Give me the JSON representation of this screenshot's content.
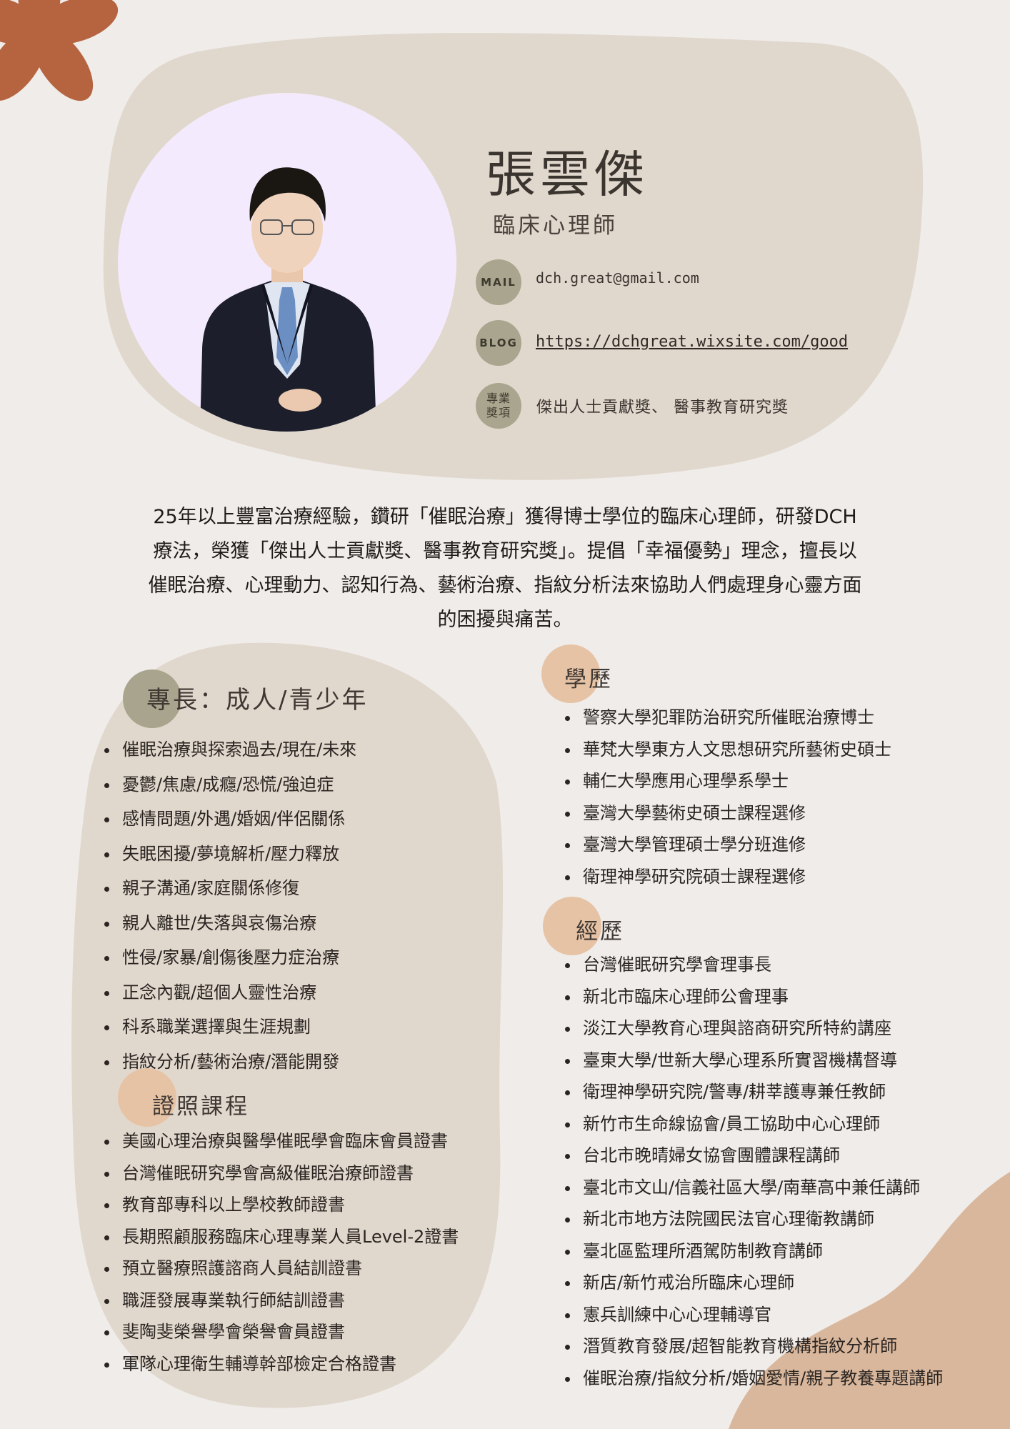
{
  "profile": {
    "name": "張雲傑",
    "title": "臨床心理師",
    "contacts": [
      {
        "icon": "MAIL",
        "value": "dch.great@gmail.com"
      },
      {
        "icon": "BLOG",
        "value": "https://dchgreat.wixsite.com/good"
      },
      {
        "icon": "專業獎項",
        "value": "傑出人士貢獻獎、 醫事教育研究獎"
      }
    ]
  },
  "intro": [
    "25年以上豐富治療經驗，鑽研「催眠治療」獲得博士學位的臨床心理師，研發DCH",
    "療法，榮獲「傑出人士貢獻獎、醫事教育研究獎」。提倡「幸福優勢」理念，擅長以",
    "催眠治療、心理動力、認知行為、藝術治療、指紋分析法來協助人們處理身心靈方面",
    "的困擾與痛苦。"
  ],
  "skills": {
    "heading": "專長：成人/青少年",
    "items": [
      "催眠治療與探索過去/現在/未來",
      "憂鬱/焦慮/成癮/恐慌/強迫症",
      "感情問題/外遇/婚姻/伴侶關係",
      "失眠困擾/夢境解析/壓力釋放",
      "親子溝通/家庭關係修復",
      "親人離世/失落與哀傷治療",
      "性侵/家暴/創傷後壓力症治療",
      "正念內觀/超個人靈性治療",
      "科系職業選擇與生涯規劃",
      "指紋分析/藝術治療/潛能開發"
    ]
  },
  "certs": {
    "heading": "證照課程",
    "items": [
      "美國心理治療與醫學催眠學會臨床會員證書",
      "台灣催眠研究學會高級催眠治療師證書",
      "教育部專科以上學校教師證書",
      "長期照顧服務臨床心理專業人員Level-2證書",
      "預立醫療照護諮商人員結訓證書",
      "職涯發展專業執行師結訓證書",
      "斐陶斐榮譽學會榮譽會員證書",
      "軍隊心理衛生輔導幹部檢定合格證書"
    ]
  },
  "education": {
    "heading": "學歷",
    "items": [
      "警察大學犯罪防治研究所催眠治療博士",
      "華梵大學東方人文思想研究所藝術史碩士",
      "輔仁大學應用心理學系學士",
      "臺灣大學藝術史碩士課程選修",
      "臺灣大學管理碩士學分班進修",
      "衛理神學研究院碩士課程選修"
    ]
  },
  "experience": {
    "heading": "經歷",
    "items": [
      "台灣催眠研究學會理事長",
      "新北市臨床心理師公會理事",
      "淡江大學教育心理與諮商研究所特約講座",
      "臺東大學/世新大學心理系所實習機構督導",
      "衛理神學研究院/警專/耕莘護專兼任教師",
      "新竹市生命線協會/員工協助中心心理師",
      "台北市晚晴婦女協會團體課程講師",
      "臺北市文山/信義社區大學/南華高中兼任講師",
      "新北市地方法院國民法官心理衛教講師",
      "臺北區監理所酒駕防制教育講師",
      "新店/新竹戒治所臨床心理師",
      "憲兵訓練中心心理輔導官",
      "潛質教育發展/超智能教育機構指紋分析師",
      "催眠治療/指紋分析/婚姻愛情/親子教養專題講師"
    ]
  },
  "colors": {
    "background": "#efecea",
    "blob": "#e1d8cd",
    "flower": "#b5643f",
    "badge": "#aaa58f",
    "heading_dot_olive": "#a9a48d",
    "heading_dot_peach": "#e7c3a5",
    "corner": "#d9b79c"
  }
}
